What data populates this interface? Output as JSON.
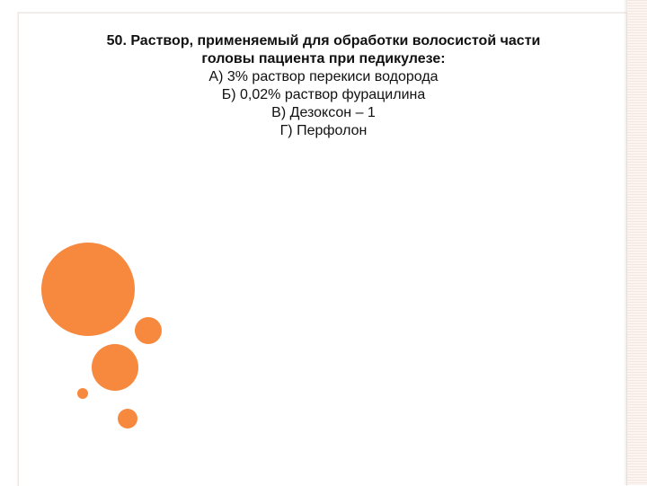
{
  "question": {
    "title_line1": "50. Раствор, применяемый для обработки волосистой части",
    "title_line2": "головы пациента при педикулезе:",
    "options": [
      "А) 3% раствор перекиси водорода",
      "Б) 0,02% раствор фурацилина",
      "В) Дезоксон – 1",
      "Г) Перфолон"
    ]
  },
  "colors": {
    "accent": "#f7893f",
    "background": "#ffffff",
    "text": "#111111"
  }
}
